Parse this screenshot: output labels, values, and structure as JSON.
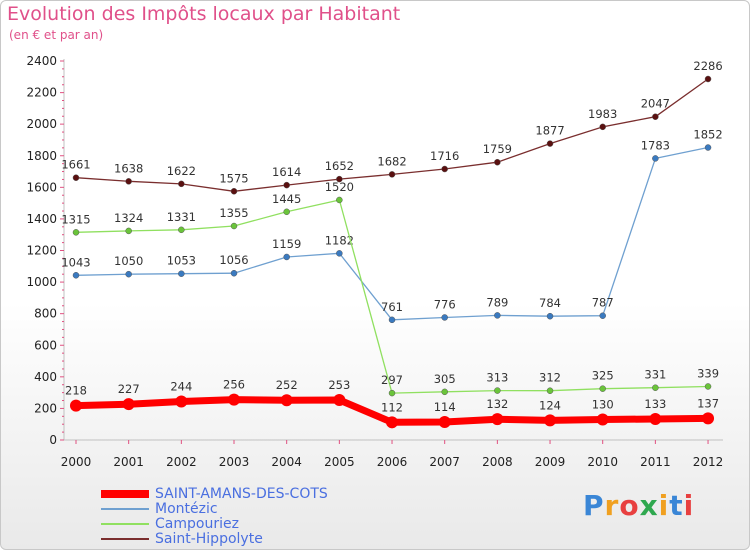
{
  "title": "Evolution des Impôts locaux par Habitant",
  "subtitle": "(en € et par an)",
  "logo": {
    "letters": [
      "P",
      "r",
      "o",
      "x",
      "i",
      "t",
      "i"
    ],
    "colors": [
      "#3a86d6",
      "#f0a020",
      "#e84040",
      "#2fa84f",
      "#f0a020",
      "#3a86d6",
      "#e84040"
    ]
  },
  "chart_data": {
    "type": "line",
    "x": [
      "2000",
      "2001",
      "2002",
      "2003",
      "2004",
      "2005",
      "2006",
      "2007",
      "2008",
      "2009",
      "2010",
      "2011",
      "2012"
    ],
    "ylim": [
      0,
      2400
    ],
    "yticks": [
      "0",
      "200",
      "400",
      "600",
      "800",
      "1000",
      "1200",
      "1400",
      "1600",
      "1800",
      "2000",
      "2200",
      "2400"
    ],
    "grid": "none",
    "legend_placement": "bottom-left",
    "series": [
      {
        "name": "Saint-Hippolyte",
        "color": "#7a2e2e",
        "dot": "#5a1010",
        "width": 1.3,
        "values": [
          1661,
          1638,
          1622,
          1575,
          1614,
          1652,
          1682,
          1716,
          1759,
          1877,
          1983,
          2047,
          2286
        ]
      },
      {
        "name": "Montézic",
        "color": "#6fa0d0",
        "dot": "#3a7ac0",
        "width": 1.3,
        "values": [
          1043,
          1050,
          1053,
          1056,
          1159,
          1182,
          761,
          776,
          789,
          784,
          787,
          1783,
          1852
        ]
      },
      {
        "name": "Campouriez",
        "color": "#90e060",
        "dot": "#6ac43a",
        "width": 1.3,
        "values": [
          1315,
          1324,
          1331,
          1355,
          1445,
          1520,
          297,
          305,
          313,
          312,
          325,
          331,
          339
        ]
      },
      {
        "name": "SAINT-AMANS-DES-COTS",
        "color": "#ff0000",
        "dot": "#ff0000",
        "width": 7,
        "values": [
          218,
          227,
          244,
          256,
          252,
          253,
          112,
          114,
          132,
          124,
          130,
          133,
          137
        ]
      }
    ],
    "legend": [
      "SAINT-AMANS-DES-COTS",
      "Montézic",
      "Campouriez",
      "Saint-Hippolyte"
    ]
  }
}
